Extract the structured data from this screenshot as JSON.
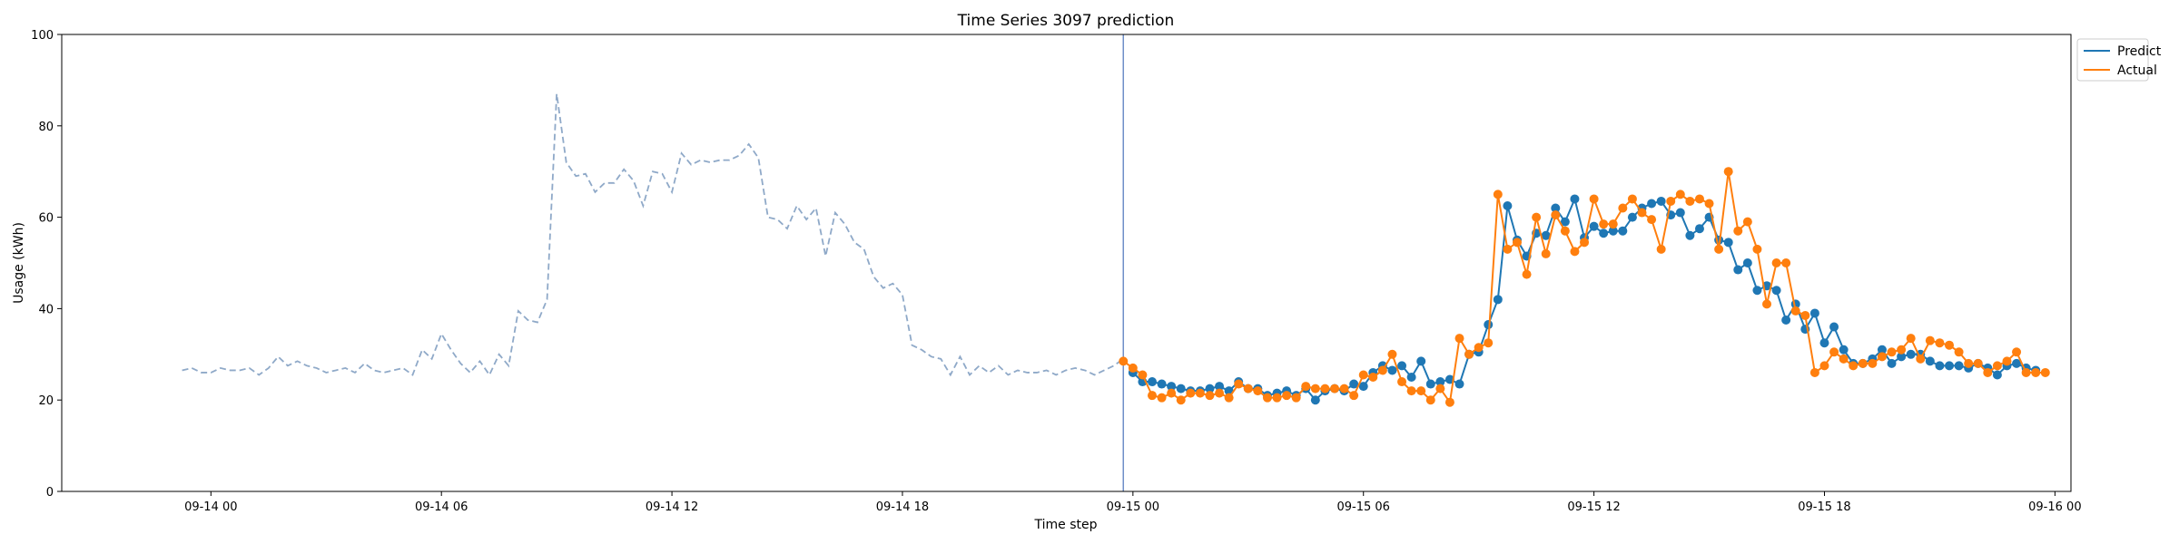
{
  "chart_data": {
    "type": "line",
    "title": "Time Series 3097 prediction",
    "xlabel": "Time step",
    "ylabel": "Usage (kWh)",
    "ylim": [
      0,
      100
    ],
    "xlim": [
      "2012-09-13 20:07",
      "2012-09-16 00:25"
    ],
    "yticks": [
      0,
      20,
      40,
      60,
      80,
      100
    ],
    "xticks": [
      {
        "value": "2012-09-14 00:00",
        "label": "09-14 00"
      },
      {
        "value": "2012-09-14 06:00",
        "label": "09-14 06"
      },
      {
        "value": "2012-09-14 12:00",
        "label": "09-14 12"
      },
      {
        "value": "2012-09-14 18:00",
        "label": "09-14 18"
      },
      {
        "value": "2012-09-15 00:00",
        "label": "09-15 00"
      },
      {
        "value": "2012-09-15 06:00",
        "label": "09-15 06"
      },
      {
        "value": "2012-09-15 12:00",
        "label": "09-15 12"
      },
      {
        "value": "2012-09-15 18:00",
        "label": "09-15 18"
      },
      {
        "value": "2012-09-16 00:00",
        "label": "09-16 00"
      }
    ],
    "forecast_start": "2012-09-14 23:45",
    "legend_position": "top-right",
    "grid": false,
    "history": {
      "start": "2012-09-13 23:15",
      "step_minutes": 15,
      "color": "#8fa9c8",
      "values": [
        26.5,
        27,
        26,
        26,
        27,
        26.5,
        26.5,
        27,
        25.5,
        27,
        29.5,
        27.5,
        28.5,
        27.5,
        27,
        26,
        26.5,
        27,
        26,
        28,
        26.5,
        26,
        26.5,
        27,
        25.5,
        31,
        29,
        34.5,
        31,
        28,
        26,
        28.5,
        25.5,
        30,
        27.5,
        39.5,
        37.5,
        37,
        42,
        87,
        72,
        69,
        69.5,
        65.5,
        67.5,
        67.5,
        70.5,
        68,
        62.5,
        70,
        69.5,
        65.5,
        74,
        71.5,
        72.5,
        72,
        72.5,
        72.5,
        73.5,
        76,
        73,
        60,
        59.5,
        57.5,
        62.5,
        59.5,
        62,
        51.5,
        61,
        58.5,
        54.5,
        53,
        47,
        44.5,
        45.5,
        43,
        32,
        31,
        29.5,
        29,
        25.5,
        29.5,
        25.5,
        27.5,
        26,
        27.5,
        25.5,
        26.5,
        26,
        26,
        26.5,
        25.5,
        26.5,
        27,
        26.5,
        25.5,
        26.5,
        27.5,
        29
      ]
    },
    "series": [
      {
        "name": "Predict",
        "color": "#1f77b4",
        "start": "2012-09-15 00:00",
        "step_minutes": 15,
        "values": [
          26,
          24,
          24,
          23.5,
          23,
          22.5,
          22,
          22,
          22.5,
          23,
          22,
          24,
          22.5,
          22.5,
          21,
          21.5,
          22,
          21,
          22.5,
          20,
          22,
          22.5,
          22,
          23.5,
          23,
          26,
          27.5,
          26.5,
          27.5,
          25,
          28.5,
          23.5,
          24,
          24.5,
          23.5,
          30,
          30.5,
          36.5,
          42,
          62.5,
          55,
          51.5,
          56.5,
          56,
          62,
          59,
          64,
          55.5,
          58,
          56.5,
          57,
          57,
          60,
          62,
          63,
          63.5,
          60.5,
          61,
          56,
          57.5,
          60,
          55,
          54.5,
          48.5,
          50,
          44,
          45,
          44,
          37.5,
          41,
          35.5,
          39,
          32.5,
          36,
          31,
          28,
          28,
          29,
          31,
          28,
          29.5,
          30,
          30,
          28.5,
          27.5,
          27.5,
          27.5,
          27,
          28,
          27,
          25.5,
          27.5,
          28,
          27,
          26.5
        ]
      },
      {
        "name": "Actual",
        "color": "#ff7f0e",
        "start": "2012-09-14 23:45",
        "step_minutes": 15,
        "values": [
          28.5,
          27,
          25.5,
          21,
          20.5,
          21.5,
          20,
          21.5,
          21.5,
          21,
          21.5,
          20.5,
          23.5,
          22.5,
          22,
          20.5,
          20.5,
          21,
          20.5,
          23,
          22.5,
          22.5,
          22.5,
          22.5,
          21,
          25.5,
          25,
          26.5,
          30,
          24,
          22,
          22,
          20,
          22.5,
          19.5,
          33.5,
          30,
          31.5,
          32.5,
          65,
          53,
          54.5,
          47.5,
          60,
          52,
          60.5,
          57,
          52.5,
          54.5,
          64,
          58.5,
          58.5,
          62,
          64,
          61,
          59.5,
          53,
          63.5,
          65,
          63.5,
          64,
          63,
          53,
          70,
          57,
          59,
          53,
          41,
          50,
          50,
          39.5,
          38.5,
          26,
          27.5,
          30.5,
          29,
          27.5,
          28,
          28,
          29.5,
          30.5,
          31,
          33.5,
          29,
          33,
          32.5,
          32,
          30.5,
          28,
          28,
          26,
          27.5,
          28.5,
          30.5,
          26,
          26,
          26
        ]
      }
    ]
  }
}
